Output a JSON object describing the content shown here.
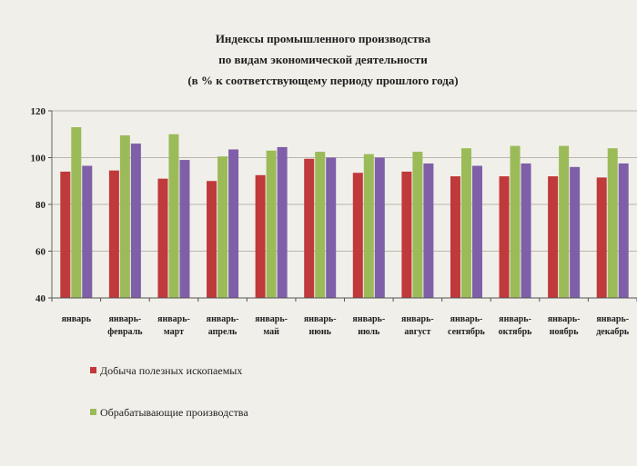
{
  "chart_data": {
    "type": "bar",
    "title": [
      "Индексы промышленного производства",
      "по видам экономической деятельности",
      "(в % к соответствующему периоду прошлого года)"
    ],
    "categories": [
      [
        "январь"
      ],
      [
        "январь-",
        "февраль"
      ],
      [
        "январь-",
        "март"
      ],
      [
        "январь-",
        "апрель"
      ],
      [
        "январь-",
        "май"
      ],
      [
        "январь-",
        "июнь"
      ],
      [
        "январь-",
        "июль"
      ],
      [
        "январь-",
        "август"
      ],
      [
        "январь-",
        "сентябрь"
      ],
      [
        "январь-",
        "октябрь"
      ],
      [
        "январь-",
        "ноябрь"
      ],
      [
        "январь-",
        "декабрь"
      ]
    ],
    "series": [
      {
        "name": "Добыча полезных ископаемых",
        "color": "#c0393b",
        "values": [
          94,
          94.5,
          91,
          90,
          92.5,
          99.5,
          93.5,
          94,
          92,
          92,
          92,
          91.5
        ]
      },
      {
        "name": "Обрабатывающие производства",
        "color": "#9bbb59",
        "values": [
          113,
          109.5,
          110,
          100.5,
          103,
          102.5,
          101.5,
          102.5,
          104,
          105,
          105,
          104
        ]
      },
      {
        "name": "",
        "color": "#7f5fa8",
        "values": [
          96.5,
          106,
          99,
          103.5,
          104.5,
          100,
          100,
          97.5,
          96.5,
          97.5,
          96,
          97.5
        ]
      }
    ],
    "ylim": [
      40,
      120
    ],
    "yticks": [
      40,
      60,
      80,
      100,
      120
    ],
    "grid": true,
    "legend": "bottom-left"
  }
}
